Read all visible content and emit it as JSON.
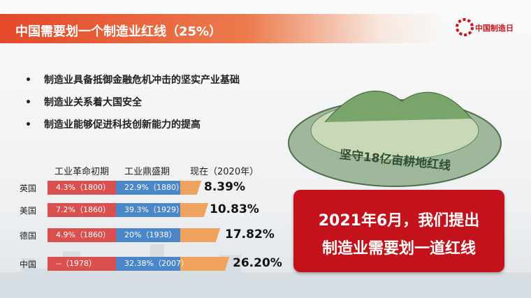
{
  "header": {
    "title": "中国需要划一个制造业红线（25%）",
    "logo": "中国制造日"
  },
  "bullets": [
    "制造业具备抵御金融危机冲击的坚实产业基础",
    "制造业关系着大国安全",
    "制造业能够促进科技创新能力的提高"
  ],
  "illustration": {
    "caption": "坚守18亿亩耕地红线"
  },
  "table": {
    "headers": [
      "工业革命初期",
      "工业鼎盛期",
      "现在（2020年）"
    ],
    "rows": [
      [
        "英国",
        "4.3%（1800）",
        "22.9%（1880）",
        "8.39%"
      ],
      [
        "美国",
        "7.2%（1860）",
        "39.3%（1929）",
        "10.83%"
      ],
      [
        "德国",
        "4.9%（1860）",
        "20%（1938）",
        "17.82%"
      ],
      [
        "中国",
        "--（1978）",
        "32.38%（2007）",
        "26.20%"
      ]
    ]
  },
  "callout": {
    "lines": [
      "2021年6月，我们提出",
      "制造业需要划一道红线"
    ]
  }
}
